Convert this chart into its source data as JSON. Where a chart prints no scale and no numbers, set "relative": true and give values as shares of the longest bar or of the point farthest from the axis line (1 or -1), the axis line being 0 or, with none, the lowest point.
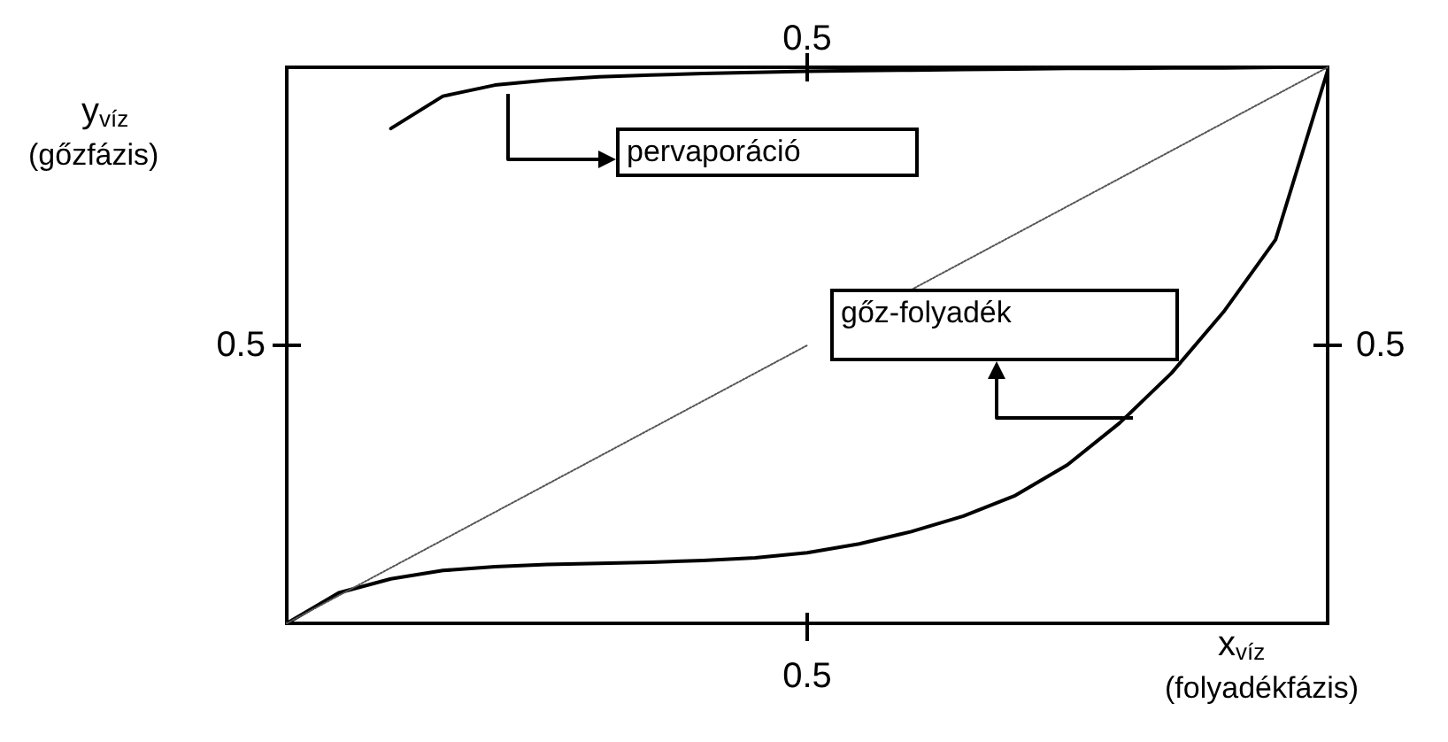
{
  "chart_data": {
    "type": "line",
    "relative": true,
    "xlabel": "x$_{víz}$ (folyadékfázis)",
    "ylabel": "y$_{víz}$ (gőzfázis)",
    "marker": "none",
    "line_style": "solid",
    "categories": [
      null,
      null,
      null,
      null,
      null,
      null,
      null,
      null,
      null,
      null,
      null,
      null,
      null,
      null,
      null,
      null,
      null,
      null,
      null,
      null,
      null
    ],
    "series": [
      {
        "color": "#000000",
        "values": [
          null,
          null,
          0.89,
          0.948,
          0.968,
          0.977,
          0.983,
          0.986,
          0.989,
          0.991,
          0.993,
          0.994,
          0.995,
          0.996,
          0.997,
          0.998,
          0.998,
          0.999,
          0.999,
          1,
          1
        ]
      },
      {
        "color": "#000000",
        "values": [
          0,
          0.055,
          0.08,
          0.095,
          0.102,
          0.106,
          0.108,
          0.11,
          0.113,
          0.118,
          0.127,
          0.143,
          0.165,
          0.193,
          0.23,
          0.285,
          0.36,
          0.45,
          0.56,
          0.69,
          0.994
        ]
      },
      {
        "color": "#555555",
        "line_style": "dotted",
        "values": [
          0,
          0.05,
          0.1,
          0.15,
          0.2,
          0.25,
          0.3,
          0.35,
          0.4,
          0.45,
          0.5,
          null,
          0.6,
          0.65,
          0.7,
          0.75,
          0.8,
          0.85,
          0.9,
          0.95,
          1
        ]
      }
    ],
    "annotations": [
      "0.5",
      "0.5",
      "0.5",
      "0.5",
      "pervaporáció",
      "gőz-folyadék"
    ]
  }
}
